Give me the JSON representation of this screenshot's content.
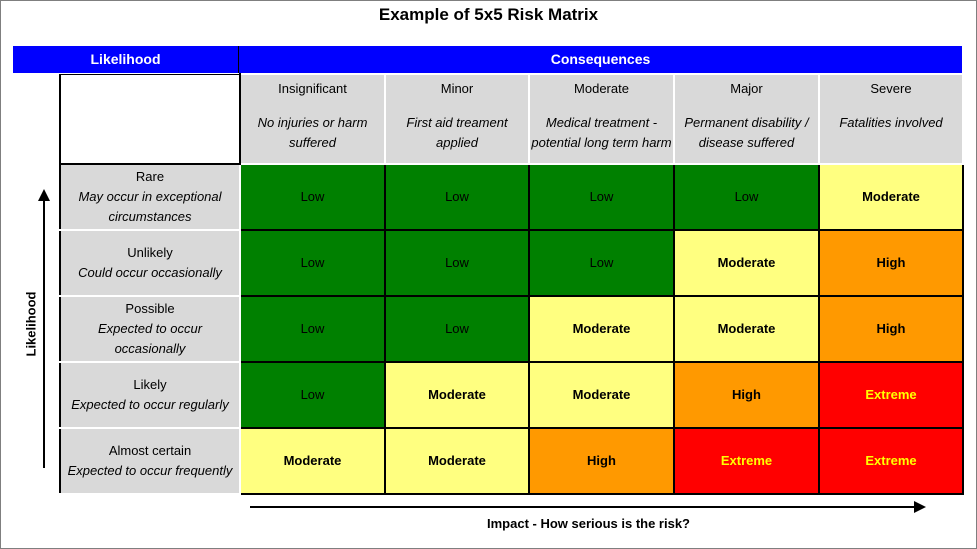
{
  "title": "Example of 5x5 Risk Matrix",
  "likelihood_header": "Likelihood",
  "consequences_header": "Consequences",
  "columns": [
    {
      "name": "Insignificant",
      "desc": "No injuries or harm suffered"
    },
    {
      "name": "Minor",
      "desc": "First aid treament applied"
    },
    {
      "name": "Moderate",
      "desc": "Medical treatment - potential long term harm"
    },
    {
      "name": "Major",
      "desc": "Permanent disability / disease suffered"
    },
    {
      "name": "Severe",
      "desc": "Fatalities involved"
    }
  ],
  "rows": [
    {
      "name": "Rare",
      "desc": "May occur in exceptional circumstances",
      "cells": [
        "Low",
        "Low",
        "Low",
        "Low",
        "Moderate"
      ]
    },
    {
      "name": "Unlikely",
      "desc": "Could occur occasionally",
      "cells": [
        "Low",
        "Low",
        "Low",
        "Moderate",
        "High"
      ]
    },
    {
      "name": "Possible",
      "desc": "Expected to occur occasionally",
      "cells": [
        "Low",
        "Low",
        "Moderate",
        "Moderate",
        "High"
      ]
    },
    {
      "name": "Likely",
      "desc": "Expected to occur regularly",
      "cells": [
        "Low",
        "Moderate",
        "Moderate",
        "High",
        "Extreme"
      ]
    },
    {
      "name": "Almost certain",
      "desc": "Expected to occur frequently",
      "cells": [
        "Moderate",
        "Moderate",
        "High",
        "Extreme",
        "Extreme"
      ]
    }
  ],
  "y_axis_label": "Likelihood",
  "x_axis_label": "Impact - How serious is the risk?",
  "colors": {
    "header_bar": "#0000ff",
    "Low": "#008000",
    "Moderate": "#ffff80",
    "High": "#ff9900",
    "Extreme": "#ff0000"
  }
}
